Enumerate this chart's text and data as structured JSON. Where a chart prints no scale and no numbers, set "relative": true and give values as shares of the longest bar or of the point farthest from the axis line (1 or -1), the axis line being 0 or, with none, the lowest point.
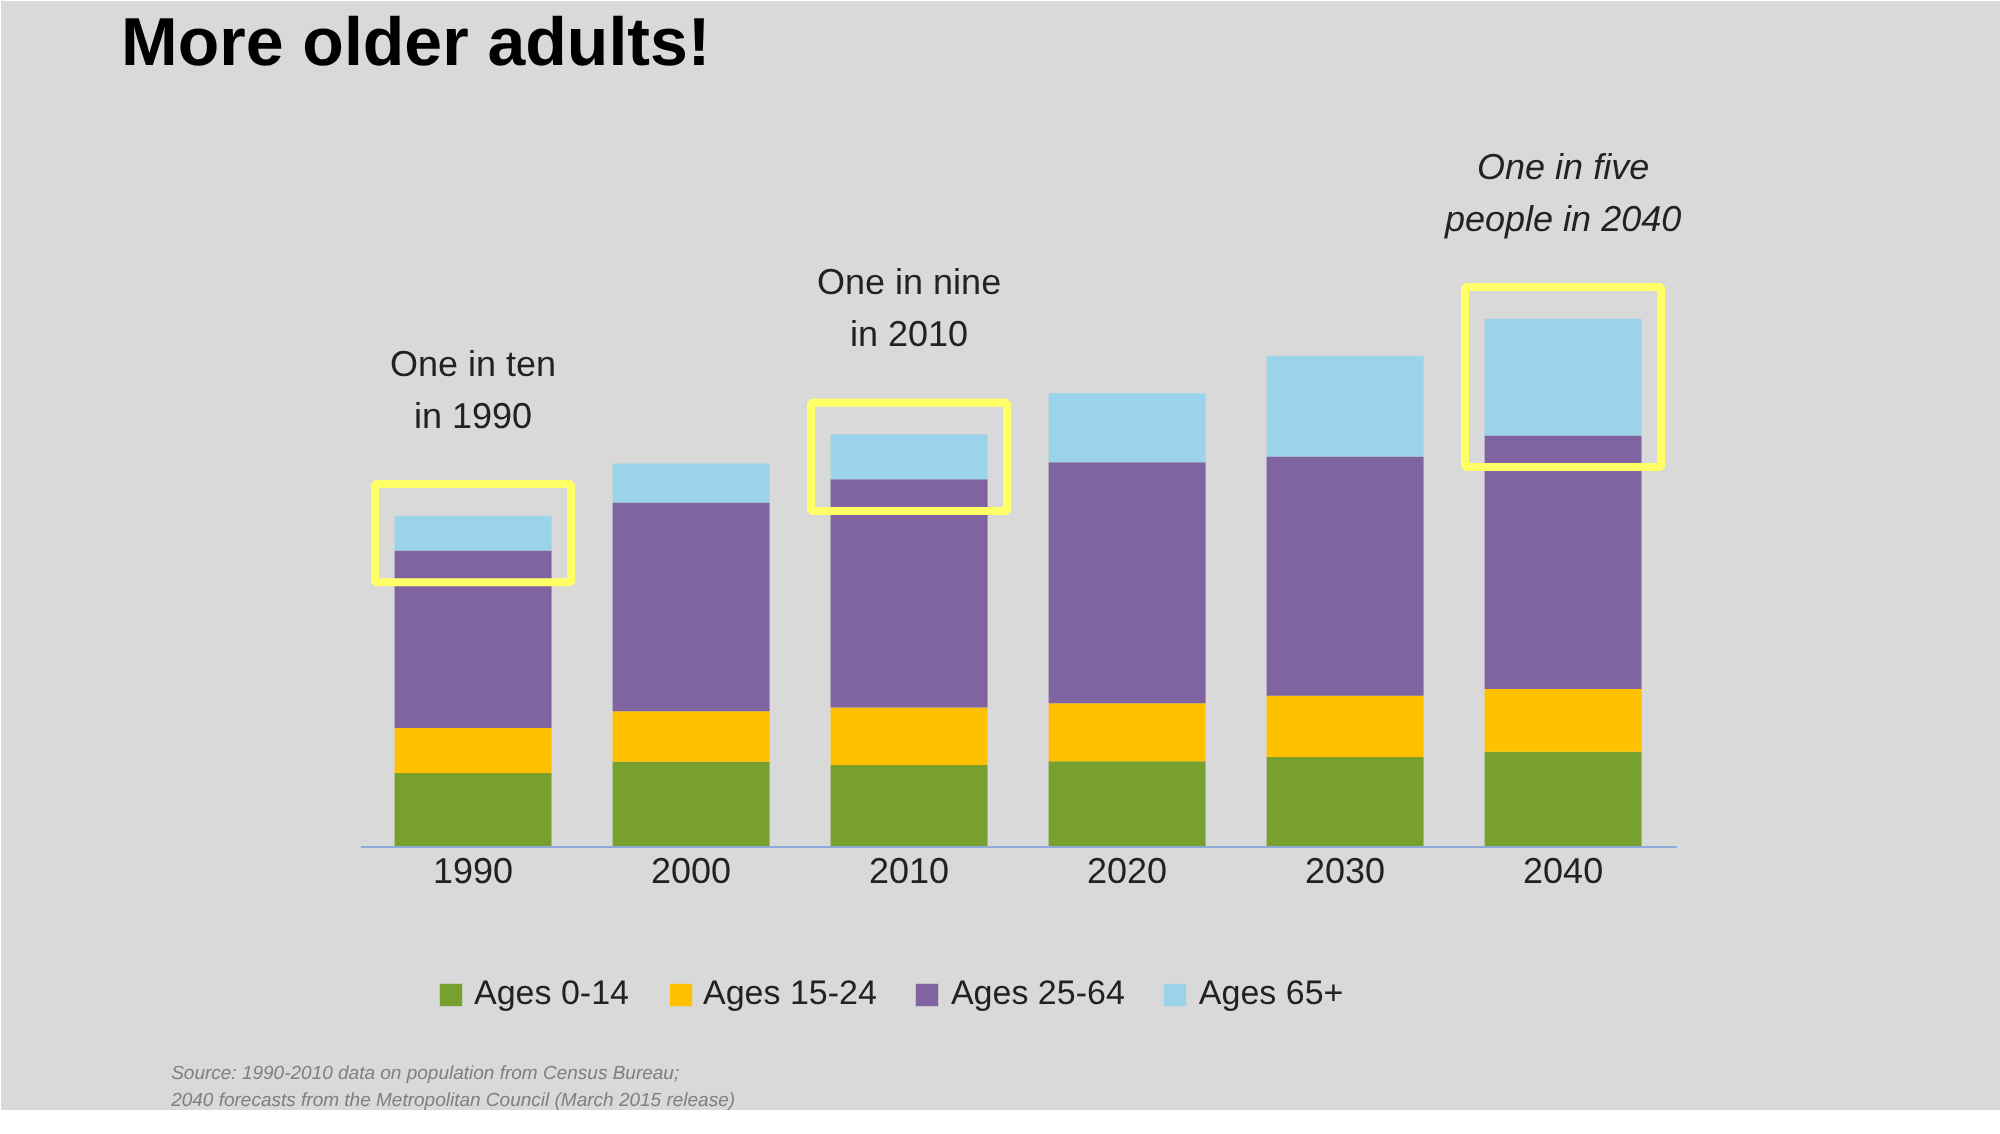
{
  "chart_data": {
    "type": "bar",
    "title": "More older adults!",
    "stacked": true,
    "relative": true,
    "legend": "bottom",
    "categories": [
      "1990",
      "2000",
      "2010",
      "2020",
      "2030",
      "2040"
    ],
    "series": [
      {
        "name": "Ages 0-14",
        "color": "#77a02f",
        "values": [
          0.14,
          0.161,
          0.155,
          0.162,
          0.17,
          0.18
        ]
      },
      {
        "name": "Ages 15-24",
        "color": "#ffc000",
        "values": [
          0.085,
          0.096,
          0.109,
          0.11,
          0.116,
          0.119
        ]
      },
      {
        "name": "Ages 25-64",
        "color": "#8064a2",
        "values": [
          0.336,
          0.395,
          0.432,
          0.456,
          0.453,
          0.48
        ]
      },
      {
        "name": "Ages 65+",
        "color": "#9bd3ea",
        "values": [
          0.066,
          0.074,
          0.085,
          0.131,
          0.191,
          0.221
        ]
      }
    ],
    "annotations": [
      {
        "text": "One in ten\nin 1990",
        "x": "1990",
        "y": 0.627
      },
      {
        "text": "One in nine\nin 2010",
        "x": "2010",
        "y": 0.781
      },
      {
        "text": "One in five\npeople in 2040",
        "x": "2040",
        "y": 1.0
      },
      "Source:  1990-2010 data on population from Census Bureau;",
      "2040 forecasts from the Metropolitan Council (March 2015 release)"
    ]
  }
}
